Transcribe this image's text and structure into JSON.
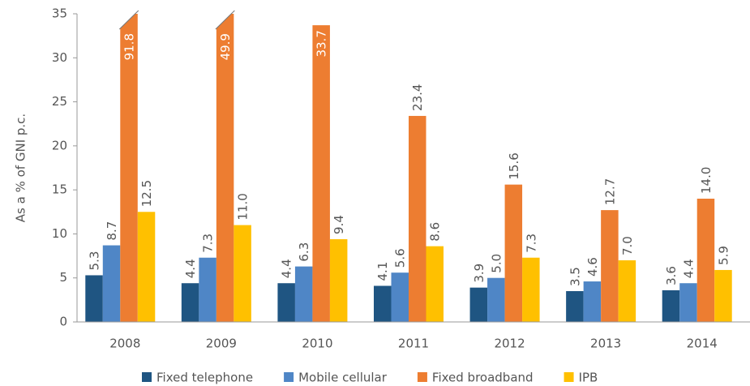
{
  "chart_data": {
    "type": "bar",
    "y_label": "As a % of GNI p.c.",
    "categories": [
      "2008",
      "2009",
      "2010",
      "2011",
      "2012",
      "2013",
      "2014"
    ],
    "series": [
      {
        "name": "Fixed telephone",
        "color": "#1f5582",
        "values": [
          5.3,
          4.4,
          4.4,
          4.1,
          3.9,
          3.5,
          3.6
        ],
        "value_labels": [
          "5.3",
          "4.4",
          "4.4",
          "4.1",
          "3.9",
          "3.5",
          "3.6"
        ]
      },
      {
        "name": "Mobile cellular",
        "color": "#4f86c6",
        "values": [
          8.7,
          7.3,
          6.3,
          5.6,
          5.0,
          4.6,
          4.4
        ],
        "value_labels": [
          "8.7",
          "7.3",
          "6.3",
          "5.6",
          "5.0",
          "4.6",
          "4.4"
        ]
      },
      {
        "name": "Fixed broadband",
        "color": "#ed7d31",
        "values": [
          91.8,
          49.9,
          33.7,
          23.4,
          15.6,
          12.7,
          14.0
        ],
        "value_labels": [
          "91.8",
          "49.9",
          "33.7",
          "23.4",
          "15.6",
          "12.7",
          "14.0"
        ]
      },
      {
        "name": "IPB",
        "color": "#ffc000",
        "values": [
          12.5,
          11.0,
          9.4,
          8.6,
          7.3,
          7.0,
          5.9
        ],
        "value_labels": [
          "12.5",
          "11.0",
          "9.4",
          "8.6",
          "7.3",
          "7.0",
          "5.9"
        ]
      }
    ],
    "ylim": [
      0,
      35
    ],
    "yticks": [
      0,
      5,
      10,
      15,
      20,
      25,
      30,
      35
    ],
    "grid": false,
    "legend": "bottom"
  }
}
